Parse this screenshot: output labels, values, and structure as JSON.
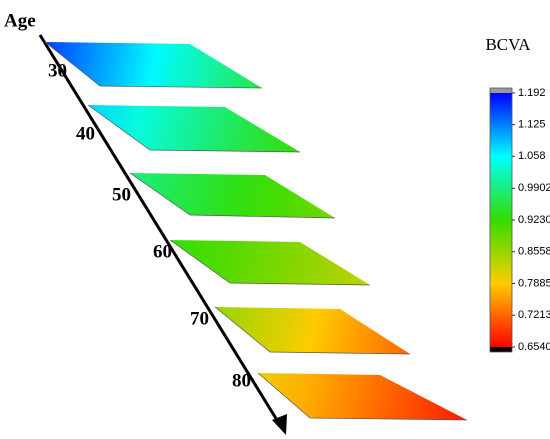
{
  "chart_data": {
    "type": "colormap-planes",
    "axis_label": "Age",
    "colorbar_title": "BCVA",
    "colormap": [
      "#ff0000",
      "#ffcc00",
      "#33dd00",
      "#00ffff",
      "#0000ff"
    ],
    "under_color": "#000000",
    "over_color": "#999999",
    "clim": [
      0.654,
      1.192
    ],
    "cticks": [
      {
        "value": 1.192,
        "label": "1.192"
      },
      {
        "value": 1.125,
        "label": "1.125"
      },
      {
        "value": 1.058,
        "label": "1.058"
      },
      0.9902,
      {
        "value": 0.923,
        "label": "0.9230"
      },
      0.8558,
      0.7885,
      0.7213,
      {
        "value": 0.654,
        "label": "0.6540"
      }
    ],
    "planes": [
      {
        "label": "30",
        "high": 1.16,
        "low": 0.96
      },
      {
        "label": "40",
        "high": 1.08,
        "low": 0.92
      },
      {
        "label": "50",
        "high": 0.99,
        "low": 0.88
      },
      {
        "label": "60",
        "high": 0.93,
        "low": 0.83
      },
      {
        "label": "70",
        "high": 0.86,
        "low": 0.72
      },
      {
        "label": "80",
        "high": 0.8,
        "low": 0.67
      }
    ]
  }
}
